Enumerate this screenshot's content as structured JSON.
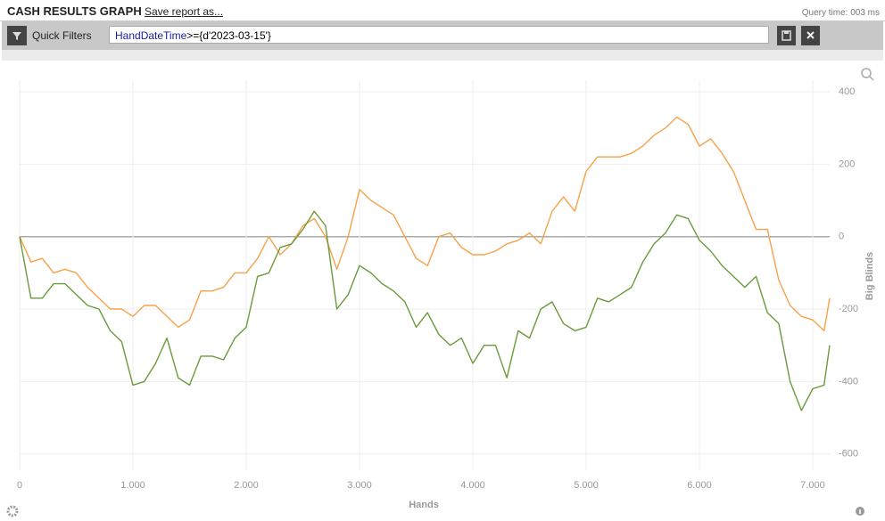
{
  "header": {
    "title": "CASH RESULTS GRAPH",
    "save": "Save report as...",
    "query_time": "Query time: 003 ms"
  },
  "filter": {
    "label": "Quick Filters",
    "field": "HandDateTime",
    "expression": ">={d'2023-03-15'}"
  },
  "chart_data": {
    "type": "line",
    "x_label": "Hands",
    "y_label": "Big Blinds",
    "grid": true,
    "xlim": [
      0,
      7150
    ],
    "xticks": [
      0,
      {
        "value": 1000,
        "label": "1.000"
      },
      {
        "value": 2000,
        "label": "2.000"
      },
      {
        "value": 3000,
        "label": "3.000"
      },
      {
        "value": 4000,
        "label": "4.000"
      },
      {
        "value": 5000,
        "label": "5.000"
      },
      {
        "value": 6000,
        "label": "6.000"
      },
      {
        "value": 7000,
        "label": "7.000"
      }
    ],
    "ylim": [
      -645,
      432
    ],
    "yticks": [
      400,
      200,
      0,
      -200,
      -400,
      -600
    ],
    "x": [
      0,
      100,
      200,
      300,
      400,
      500,
      600,
      700,
      800,
      900,
      1000,
      1100,
      1200,
      1300,
      1400,
      1500,
      1600,
      1700,
      1800,
      1900,
      2000,
      2100,
      2200,
      2300,
      2400,
      2500,
      2600,
      2700,
      2800,
      2900,
      3000,
      3100,
      3200,
      3300,
      3400,
      3500,
      3600,
      3700,
      3800,
      3900,
      4000,
      4100,
      4200,
      4300,
      4400,
      4500,
      4600,
      4700,
      4800,
      4900,
      5000,
      5100,
      5200,
      5300,
      5400,
      5500,
      5600,
      5700,
      5800,
      5900,
      6000,
      6100,
      6200,
      6300,
      6400,
      6500,
      6600,
      6700,
      6800,
      6900,
      7000,
      7100,
      7150
    ],
    "series": [
      {
        "color": "#f5a24a",
        "values": [
          0,
          -70,
          -60,
          -100,
          -90,
          -100,
          -140,
          -170,
          -200,
          -200,
          -220,
          -190,
          -190,
          -220,
          -250,
          -230,
          -150,
          -150,
          -140,
          -100,
          -100,
          -60,
          0,
          -50,
          -20,
          30,
          50,
          0,
          -90,
          0,
          130,
          100,
          80,
          60,
          0,
          -60,
          -80,
          0,
          10,
          -30,
          -50,
          -50,
          -40,
          -20,
          -10,
          10,
          -20,
          70,
          110,
          70,
          180,
          220,
          220,
          220,
          230,
          250,
          280,
          300,
          330,
          310,
          250,
          270,
          230,
          180,
          100,
          20,
          20,
          -120,
          -190,
          -220,
          -230,
          -260,
          -170
        ]
      },
      {
        "color": "#6a9a3c",
        "values": [
          0,
          -170,
          -170,
          -130,
          -130,
          -160,
          -190,
          -200,
          -260,
          -290,
          -410,
          -400,
          -350,
          -280,
          -390,
          -410,
          -330,
          -330,
          -340,
          -280,
          -250,
          -110,
          -100,
          -30,
          -20,
          20,
          70,
          30,
          -200,
          -160,
          -80,
          -100,
          -130,
          -150,
          -180,
          -250,
          -210,
          -270,
          -300,
          -280,
          -350,
          -300,
          -300,
          -390,
          -260,
          -280,
          -200,
          -180,
          -240,
          -260,
          -250,
          -170,
          -180,
          -160,
          -140,
          -70,
          -20,
          10,
          60,
          50,
          -10,
          -40,
          -80,
          -110,
          -140,
          -110,
          -210,
          -240,
          -400,
          -480,
          -420,
          -410,
          -300
        ]
      }
    ]
  }
}
